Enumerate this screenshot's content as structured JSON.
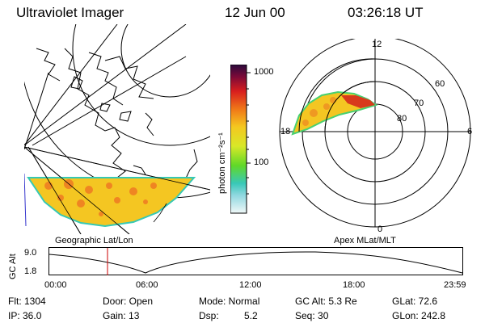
{
  "header": {
    "instrument": "Ultraviolet Imager",
    "date": "12 Jun 00",
    "time": "03:26:18 UT"
  },
  "left_panel": {
    "caption": "Geographic Lat/Lon",
    "fill_color": "#f2c81e"
  },
  "colorbar": {
    "unit_label": "photon cm⁻²s⁻¹",
    "ticks": [
      "1000",
      "100"
    ],
    "scale": "log"
  },
  "right_panel": {
    "caption": "Apex MLat/MLT",
    "mlt_labels": [
      "12",
      "18",
      "6",
      "0"
    ],
    "mlat_labels": [
      "60",
      "70",
      "80"
    ]
  },
  "altitude_plot": {
    "ylabel": "GC Alt",
    "yticks": [
      "9.0",
      "1.8"
    ],
    "xticks": [
      "00:00",
      "06:00",
      "12:00",
      "18:00",
      "23:59"
    ],
    "current_time_marker": "03:26:18",
    "marker_color": "#cc0000"
  },
  "status": {
    "flt": "Flt: 1304",
    "ip": "IP: 36.0",
    "door": "Door: Open",
    "gain": "Gain: 13",
    "mode": "Mode: Normal",
    "dsp_label": "Dsp:",
    "dsp_value": "5.2",
    "gc_alt": "GC Alt: 5.3 Re",
    "seq": "Seq: 30",
    "glat": "GLat:  72.6",
    "glon": "GLon: 242.8"
  }
}
